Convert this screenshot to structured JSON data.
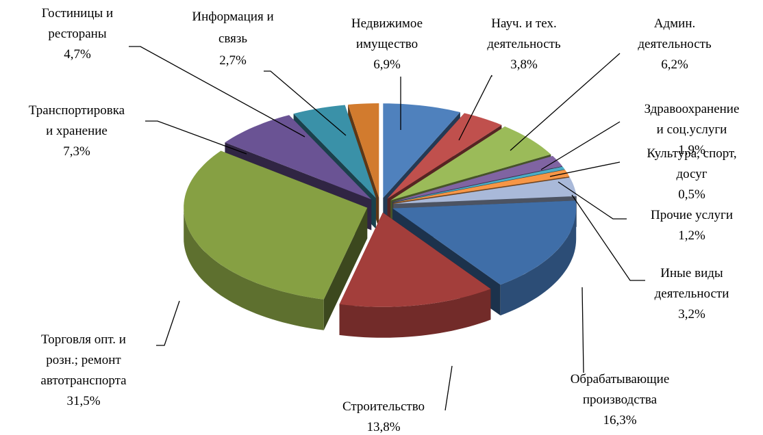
{
  "chart_data": {
    "type": "pie3d",
    "categories": [
      "Недвижимое\nимущество",
      "Науч. и тех.\nдеятельность",
      "Админ.\nдеятельность",
      "Здравоохранение\nи соц.услуги",
      "Культура, спорт,\nдосуг",
      "Прочие услуги",
      "Иные виды\nдеятельности",
      "Обрабатывающие\nпроизводства",
      "Строительство",
      "Торговля опт. и\nрозн.; ремонт\nавтотранспорта",
      "Транспортировка\nи хранение",
      "Гостиницы и\nрестораны",
      "Информация и\nсвязь"
    ],
    "values": [
      6.9,
      3.8,
      6.2,
      1.9,
      0.5,
      1.2,
      3.2,
      16.3,
      13.8,
      31.5,
      7.3,
      4.7,
      2.7
    ],
    "value_labels": [
      "6,9%",
      "3,8%",
      "6,2%",
      "1,9%",
      "0,5%",
      "1,2%",
      "3,2%",
      "16,3%",
      "13,8%",
      "31,5%",
      "7,3%",
      "4,7%",
      "2,7%"
    ],
    "colors": [
      "#4f81bd",
      "#c0504d",
      "#9bbb59",
      "#8064a2",
      "#4bacc6",
      "#f79646",
      "#a9b9d9",
      "#3f6ea8",
      "#a33e3b",
      "#86a043",
      "#6a5394",
      "#3a91a8",
      "#d27b2e"
    ]
  }
}
